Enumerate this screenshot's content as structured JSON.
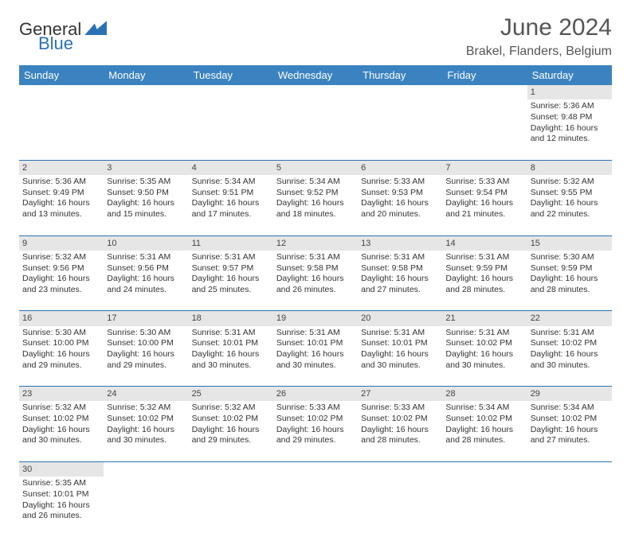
{
  "brand": {
    "part1": "General",
    "part2": "Blue"
  },
  "title": "June 2024",
  "location": "Brakel, Flanders, Belgium",
  "colors": {
    "header_bg": "#3b83c0",
    "header_text": "#ffffff",
    "daynum_bg": "#e6e6e6",
    "border": "#2a72b5",
    "text": "#333333",
    "title_text": "#555555"
  },
  "weekdays": [
    "Sunday",
    "Monday",
    "Tuesday",
    "Wednesday",
    "Thursday",
    "Friday",
    "Saturday"
  ],
  "weeks": [
    [
      null,
      null,
      null,
      null,
      null,
      null,
      {
        "n": "1",
        "sr": "Sunrise: 5:36 AM",
        "ss": "Sunset: 9:48 PM",
        "dl": "Daylight: 16 hours and 12 minutes."
      }
    ],
    [
      {
        "n": "2",
        "sr": "Sunrise: 5:36 AM",
        "ss": "Sunset: 9:49 PM",
        "dl": "Daylight: 16 hours and 13 minutes."
      },
      {
        "n": "3",
        "sr": "Sunrise: 5:35 AM",
        "ss": "Sunset: 9:50 PM",
        "dl": "Daylight: 16 hours and 15 minutes."
      },
      {
        "n": "4",
        "sr": "Sunrise: 5:34 AM",
        "ss": "Sunset: 9:51 PM",
        "dl": "Daylight: 16 hours and 17 minutes."
      },
      {
        "n": "5",
        "sr": "Sunrise: 5:34 AM",
        "ss": "Sunset: 9:52 PM",
        "dl": "Daylight: 16 hours and 18 minutes."
      },
      {
        "n": "6",
        "sr": "Sunrise: 5:33 AM",
        "ss": "Sunset: 9:53 PM",
        "dl": "Daylight: 16 hours and 20 minutes."
      },
      {
        "n": "7",
        "sr": "Sunrise: 5:33 AM",
        "ss": "Sunset: 9:54 PM",
        "dl": "Daylight: 16 hours and 21 minutes."
      },
      {
        "n": "8",
        "sr": "Sunrise: 5:32 AM",
        "ss": "Sunset: 9:55 PM",
        "dl": "Daylight: 16 hours and 22 minutes."
      }
    ],
    [
      {
        "n": "9",
        "sr": "Sunrise: 5:32 AM",
        "ss": "Sunset: 9:56 PM",
        "dl": "Daylight: 16 hours and 23 minutes."
      },
      {
        "n": "10",
        "sr": "Sunrise: 5:31 AM",
        "ss": "Sunset: 9:56 PM",
        "dl": "Daylight: 16 hours and 24 minutes."
      },
      {
        "n": "11",
        "sr": "Sunrise: 5:31 AM",
        "ss": "Sunset: 9:57 PM",
        "dl": "Daylight: 16 hours and 25 minutes."
      },
      {
        "n": "12",
        "sr": "Sunrise: 5:31 AM",
        "ss": "Sunset: 9:58 PM",
        "dl": "Daylight: 16 hours and 26 minutes."
      },
      {
        "n": "13",
        "sr": "Sunrise: 5:31 AM",
        "ss": "Sunset: 9:58 PM",
        "dl": "Daylight: 16 hours and 27 minutes."
      },
      {
        "n": "14",
        "sr": "Sunrise: 5:31 AM",
        "ss": "Sunset: 9:59 PM",
        "dl": "Daylight: 16 hours and 28 minutes."
      },
      {
        "n": "15",
        "sr": "Sunrise: 5:30 AM",
        "ss": "Sunset: 9:59 PM",
        "dl": "Daylight: 16 hours and 28 minutes."
      }
    ],
    [
      {
        "n": "16",
        "sr": "Sunrise: 5:30 AM",
        "ss": "Sunset: 10:00 PM",
        "dl": "Daylight: 16 hours and 29 minutes."
      },
      {
        "n": "17",
        "sr": "Sunrise: 5:30 AM",
        "ss": "Sunset: 10:00 PM",
        "dl": "Daylight: 16 hours and 29 minutes."
      },
      {
        "n": "18",
        "sr": "Sunrise: 5:31 AM",
        "ss": "Sunset: 10:01 PM",
        "dl": "Daylight: 16 hours and 30 minutes."
      },
      {
        "n": "19",
        "sr": "Sunrise: 5:31 AM",
        "ss": "Sunset: 10:01 PM",
        "dl": "Daylight: 16 hours and 30 minutes."
      },
      {
        "n": "20",
        "sr": "Sunrise: 5:31 AM",
        "ss": "Sunset: 10:01 PM",
        "dl": "Daylight: 16 hours and 30 minutes."
      },
      {
        "n": "21",
        "sr": "Sunrise: 5:31 AM",
        "ss": "Sunset: 10:02 PM",
        "dl": "Daylight: 16 hours and 30 minutes."
      },
      {
        "n": "22",
        "sr": "Sunrise: 5:31 AM",
        "ss": "Sunset: 10:02 PM",
        "dl": "Daylight: 16 hours and 30 minutes."
      }
    ],
    [
      {
        "n": "23",
        "sr": "Sunrise: 5:32 AM",
        "ss": "Sunset: 10:02 PM",
        "dl": "Daylight: 16 hours and 30 minutes."
      },
      {
        "n": "24",
        "sr": "Sunrise: 5:32 AM",
        "ss": "Sunset: 10:02 PM",
        "dl": "Daylight: 16 hours and 30 minutes."
      },
      {
        "n": "25",
        "sr": "Sunrise: 5:32 AM",
        "ss": "Sunset: 10:02 PM",
        "dl": "Daylight: 16 hours and 29 minutes."
      },
      {
        "n": "26",
        "sr": "Sunrise: 5:33 AM",
        "ss": "Sunset: 10:02 PM",
        "dl": "Daylight: 16 hours and 29 minutes."
      },
      {
        "n": "27",
        "sr": "Sunrise: 5:33 AM",
        "ss": "Sunset: 10:02 PM",
        "dl": "Daylight: 16 hours and 28 minutes."
      },
      {
        "n": "28",
        "sr": "Sunrise: 5:34 AM",
        "ss": "Sunset: 10:02 PM",
        "dl": "Daylight: 16 hours and 28 minutes."
      },
      {
        "n": "29",
        "sr": "Sunrise: 5:34 AM",
        "ss": "Sunset: 10:02 PM",
        "dl": "Daylight: 16 hours and 27 minutes."
      }
    ],
    [
      {
        "n": "30",
        "sr": "Sunrise: 5:35 AM",
        "ss": "Sunset: 10:01 PM",
        "dl": "Daylight: 16 hours and 26 minutes."
      },
      null,
      null,
      null,
      null,
      null,
      null
    ]
  ]
}
